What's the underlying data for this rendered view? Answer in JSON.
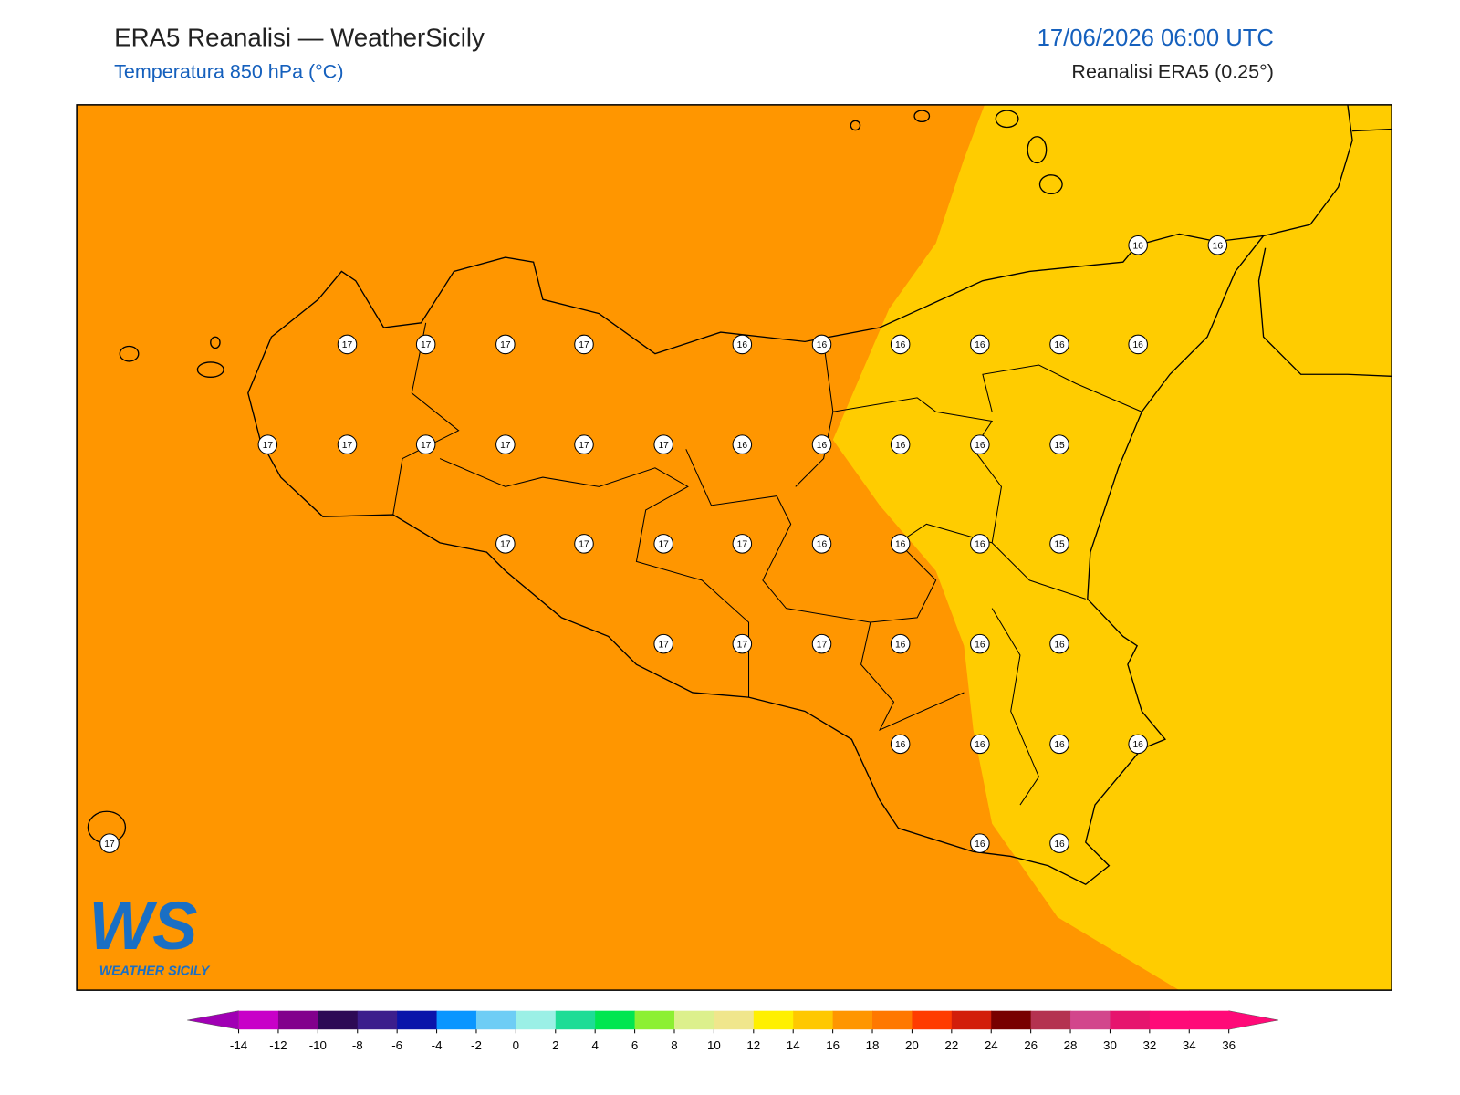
{
  "header": {
    "title": "ERA5 Reanalisi — WeatherSicily",
    "subtitle": "Temperatura 850 hPa (°C)",
    "datetime": "17/06/2026 06:00 UTC",
    "source": "Reanalisi ERA5 (0.25°)"
  },
  "map": {
    "fill_colors": [
      "#ff9600",
      "#ffcc00"
    ],
    "stations": [
      16,
      16,
      17,
      17,
      17,
      17,
      16,
      16,
      16,
      16,
      16,
      16,
      17,
      17,
      17,
      17,
      17,
      17,
      16,
      16,
      16,
      16,
      15,
      17,
      17,
      17,
      17,
      16,
      16,
      16,
      15,
      17,
      17,
      17,
      16,
      16,
      16,
      16,
      16,
      16,
      16,
      17,
      16,
      16
    ]
  },
  "logo": {
    "mark": "WS",
    "text": "WEATHER SICILY"
  },
  "colorbar": {
    "ticks": [
      -14,
      -12,
      -10,
      -8,
      -6,
      -4,
      -2,
      0,
      2,
      4,
      6,
      8,
      10,
      12,
      14,
      16,
      18,
      20,
      22,
      24,
      26,
      28,
      30,
      32,
      34,
      36
    ],
    "under": "#a000b4",
    "colors": [
      "#c800c8",
      "#82008c",
      "#2d0a55",
      "#3c1e8c",
      "#0a14aa",
      "#0a96ff",
      "#6ecdf5",
      "#9bf0e6",
      "#1edc96",
      "#00e650",
      "#8cf032",
      "#dcf08c",
      "#f0e68c",
      "#fff000",
      "#ffc800",
      "#ff9600",
      "#ff7800",
      "#ff3c00",
      "#d21e0a",
      "#780000",
      "#b43250",
      "#d2468c",
      "#e6146e",
      "#ff0a78",
      "#ff0a78"
    ],
    "over": "#ff0a78"
  }
}
